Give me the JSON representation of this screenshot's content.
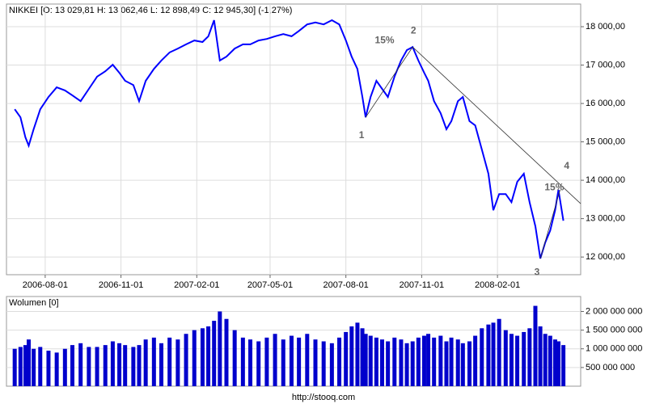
{
  "chart_data": [
    {
      "type": "line",
      "title": "NIKKEI [O: 13 029,81  H: 13 062,46  L: 12 898,49  C: 12 945,30] (-1,27%)",
      "x": [
        "2006-06-25",
        "2006-07-02",
        "2006-07-08",
        "2006-07-12",
        "2006-07-18",
        "2006-07-26",
        "2006-08-05",
        "2006-08-15",
        "2006-08-25",
        "2006-09-03",
        "2006-09-13",
        "2006-09-23",
        "2006-10-03",
        "2006-10-13",
        "2006-10-22",
        "2006-10-30",
        "2006-11-06",
        "2006-11-16",
        "2006-11-23",
        "2006-12-01",
        "2006-12-11",
        "2006-12-20",
        "2006-12-30",
        "2007-01-09",
        "2007-01-19",
        "2007-01-29",
        "2007-02-08",
        "2007-02-15",
        "2007-02-22",
        "2007-03-01",
        "2007-03-09",
        "2007-03-19",
        "2007-03-29",
        "2007-04-07",
        "2007-04-17",
        "2007-04-27",
        "2007-05-07",
        "2007-05-17",
        "2007-05-27",
        "2007-06-05",
        "2007-06-15",
        "2007-06-25",
        "2007-07-05",
        "2007-07-15",
        "2007-07-24",
        "2007-08-01",
        "2007-08-08",
        "2007-08-15",
        "2007-08-21",
        "2007-08-25",
        "2007-08-31",
        "2007-09-07",
        "2007-09-14",
        "2007-09-21",
        "2007-09-29",
        "2007-10-07",
        "2007-10-14",
        "2007-10-21",
        "2007-10-28",
        "2007-11-04",
        "2007-11-09",
        "2007-11-16",
        "2007-11-24",
        "2007-12-01",
        "2007-12-07",
        "2007-12-15",
        "2007-12-21",
        "2007-12-29",
        "2008-01-05",
        "2008-01-13",
        "2008-01-21",
        "2008-01-27",
        "2008-02-03",
        "2008-02-11",
        "2008-02-18",
        "2008-02-25",
        "2008-03-04",
        "2008-03-11",
        "2008-03-18",
        "2008-03-24",
        "2008-03-30",
        "2008-04-05",
        "2008-04-11",
        "2008-04-15",
        "2008-04-21"
      ],
      "series": [
        {
          "name": "NIKKEI",
          "color": "#0000ff",
          "values": [
            15850,
            15640,
            15120,
            14900,
            15330,
            15850,
            16170,
            16420,
            16340,
            16210,
            16060,
            16380,
            16700,
            16840,
            17010,
            16800,
            16590,
            16480,
            16060,
            16590,
            16900,
            17120,
            17330,
            17430,
            17540,
            17640,
            17600,
            17750,
            18170,
            17120,
            17220,
            17430,
            17540,
            17540,
            17640,
            17680,
            17750,
            17810,
            17750,
            17890,
            18060,
            18110,
            18060,
            18170,
            18060,
            17640,
            17220,
            16900,
            16170,
            15640,
            16170,
            16590,
            16380,
            16170,
            16700,
            17120,
            17390,
            17470,
            17120,
            16800,
            16590,
            16060,
            15750,
            15330,
            15540,
            16060,
            16170,
            15540,
            15430,
            14800,
            14170,
            13220,
            13640,
            13640,
            13430,
            13960,
            14170,
            13430,
            12800,
            11960,
            12380,
            12690,
            13220,
            13750,
            12945.3
          ]
        }
      ],
      "xlim": [
        "2006-06-15",
        "2008-05-12"
      ],
      "xticks": [
        "2006-08-01",
        "2006-11-01",
        "2007-02-01",
        "2007-05-01",
        "2007-08-01",
        "2007-11-01",
        "2008-02-01"
      ],
      "ylim": [
        11540,
        18590
      ],
      "yticks": [
        {
          "value": 12000,
          "label": "12 000,00"
        },
        {
          "value": 13000,
          "label": "13 000,00"
        },
        {
          "value": 14000,
          "label": "14 000,00"
        },
        {
          "value": 15000,
          "label": "15 000,00"
        },
        {
          "value": 16000,
          "label": "16 000,00"
        },
        {
          "value": 17000,
          "label": "17 000,00"
        },
        {
          "value": 18000,
          "label": "18 000,00"
        }
      ],
      "grid": true,
      "annotations": [
        {
          "text": "1",
          "x": "2007-08-20",
          "y": 15160
        },
        {
          "text": "2",
          "x": "2007-10-22",
          "y": 17890
        },
        {
          "text": "3",
          "x": "2008-03-20",
          "y": 11600
        },
        {
          "text": "4",
          "x": "2008-04-25",
          "y": 14360
        },
        {
          "text": "15%",
          "x": "2007-09-17",
          "y": 17640
        },
        {
          "text": "15%",
          "x": "2008-04-10",
          "y": 13810
        }
      ],
      "lines": [
        {
          "points": [
            [
              "2007-08-25",
              15640
            ],
            [
              "2007-10-21",
              17470
            ]
          ]
        },
        {
          "points": [
            [
              "2007-10-21",
              17470
            ],
            [
              "2008-05-12",
              13390
            ]
          ]
        },
        {
          "points": [
            [
              "2008-03-24",
              11960
            ],
            [
              "2008-04-17",
              13750
            ]
          ]
        }
      ]
    },
    {
      "type": "bar",
      "title": "Wolumen [0]",
      "x": [
        "2006-06-25",
        "2006-07-02",
        "2006-07-08",
        "2006-07-12",
        "2006-07-18",
        "2006-07-26",
        "2006-08-05",
        "2006-08-15",
        "2006-08-25",
        "2006-09-03",
        "2006-09-13",
        "2006-09-23",
        "2006-10-03",
        "2006-10-13",
        "2006-10-22",
        "2006-10-30",
        "2006-11-06",
        "2006-11-16",
        "2006-11-23",
        "2006-12-01",
        "2006-12-11",
        "2006-12-20",
        "2006-12-30",
        "2007-01-09",
        "2007-01-19",
        "2007-01-29",
        "2007-02-08",
        "2007-02-15",
        "2007-02-22",
        "2007-03-01",
        "2007-03-09",
        "2007-03-19",
        "2007-03-29",
        "2007-04-07",
        "2007-04-17",
        "2007-04-27",
        "2007-05-07",
        "2007-05-17",
        "2007-05-27",
        "2007-06-05",
        "2007-06-15",
        "2007-06-25",
        "2007-07-05",
        "2007-07-15",
        "2007-07-24",
        "2007-08-01",
        "2007-08-08",
        "2007-08-15",
        "2007-08-21",
        "2007-08-25",
        "2007-08-31",
        "2007-09-07",
        "2007-09-14",
        "2007-09-21",
        "2007-09-29",
        "2007-10-07",
        "2007-10-14",
        "2007-10-21",
        "2007-10-28",
        "2007-11-04",
        "2007-11-09",
        "2007-11-16",
        "2007-11-24",
        "2007-12-01",
        "2007-12-07",
        "2007-12-15",
        "2007-12-21",
        "2007-12-29",
        "2008-01-05",
        "2008-01-13",
        "2008-01-21",
        "2008-01-27",
        "2008-02-03",
        "2008-02-11",
        "2008-02-18",
        "2008-02-25",
        "2008-03-04",
        "2008-03-11",
        "2008-03-18",
        "2008-03-24",
        "2008-03-30",
        "2008-04-05",
        "2008-04-11",
        "2008-04-15",
        "2008-04-21"
      ],
      "series": [
        {
          "name": "Wolumen",
          "color": "#0000cc",
          "values": [
            1000000000,
            1050000000,
            1100000000,
            1250000000,
            1000000000,
            1050000000,
            950000000,
            900000000,
            1000000000,
            1100000000,
            1150000000,
            1050000000,
            1050000000,
            1100000000,
            1200000000,
            1150000000,
            1100000000,
            1050000000,
            1100000000,
            1250000000,
            1300000000,
            1150000000,
            1300000000,
            1250000000,
            1400000000,
            1500000000,
            1550000000,
            1600000000,
            1750000000,
            2000000000,
            1800000000,
            1500000000,
            1300000000,
            1250000000,
            1200000000,
            1300000000,
            1400000000,
            1250000000,
            1350000000,
            1300000000,
            1400000000,
            1250000000,
            1200000000,
            1150000000,
            1300000000,
            1450000000,
            1600000000,
            1700000000,
            1550000000,
            1400000000,
            1350000000,
            1300000000,
            1250000000,
            1200000000,
            1300000000,
            1250000000,
            1150000000,
            1200000000,
            1300000000,
            1350000000,
            1400000000,
            1300000000,
            1350000000,
            1200000000,
            1300000000,
            1250000000,
            1150000000,
            1200000000,
            1350000000,
            1550000000,
            1650000000,
            1700000000,
            1800000000,
            1500000000,
            1400000000,
            1350000000,
            1450000000,
            1550000000,
            2150000000,
            1600000000,
            1400000000,
            1350000000,
            1250000000,
            1200000000,
            1100000000
          ]
        }
      ],
      "xlim": [
        "2006-06-15",
        "2008-05-12"
      ],
      "ylim": [
        0,
        2400000000
      ],
      "yticks": [
        {
          "value": 500000000,
          "label": "500 000 000"
        },
        {
          "value": 1000000000,
          "label": "1 000 000 000"
        },
        {
          "value": 1500000000,
          "label": "1 500 000 000"
        },
        {
          "value": 2000000000,
          "label": "2 000 000 000"
        }
      ],
      "grid": true
    }
  ],
  "footer": "http://stooq.com"
}
